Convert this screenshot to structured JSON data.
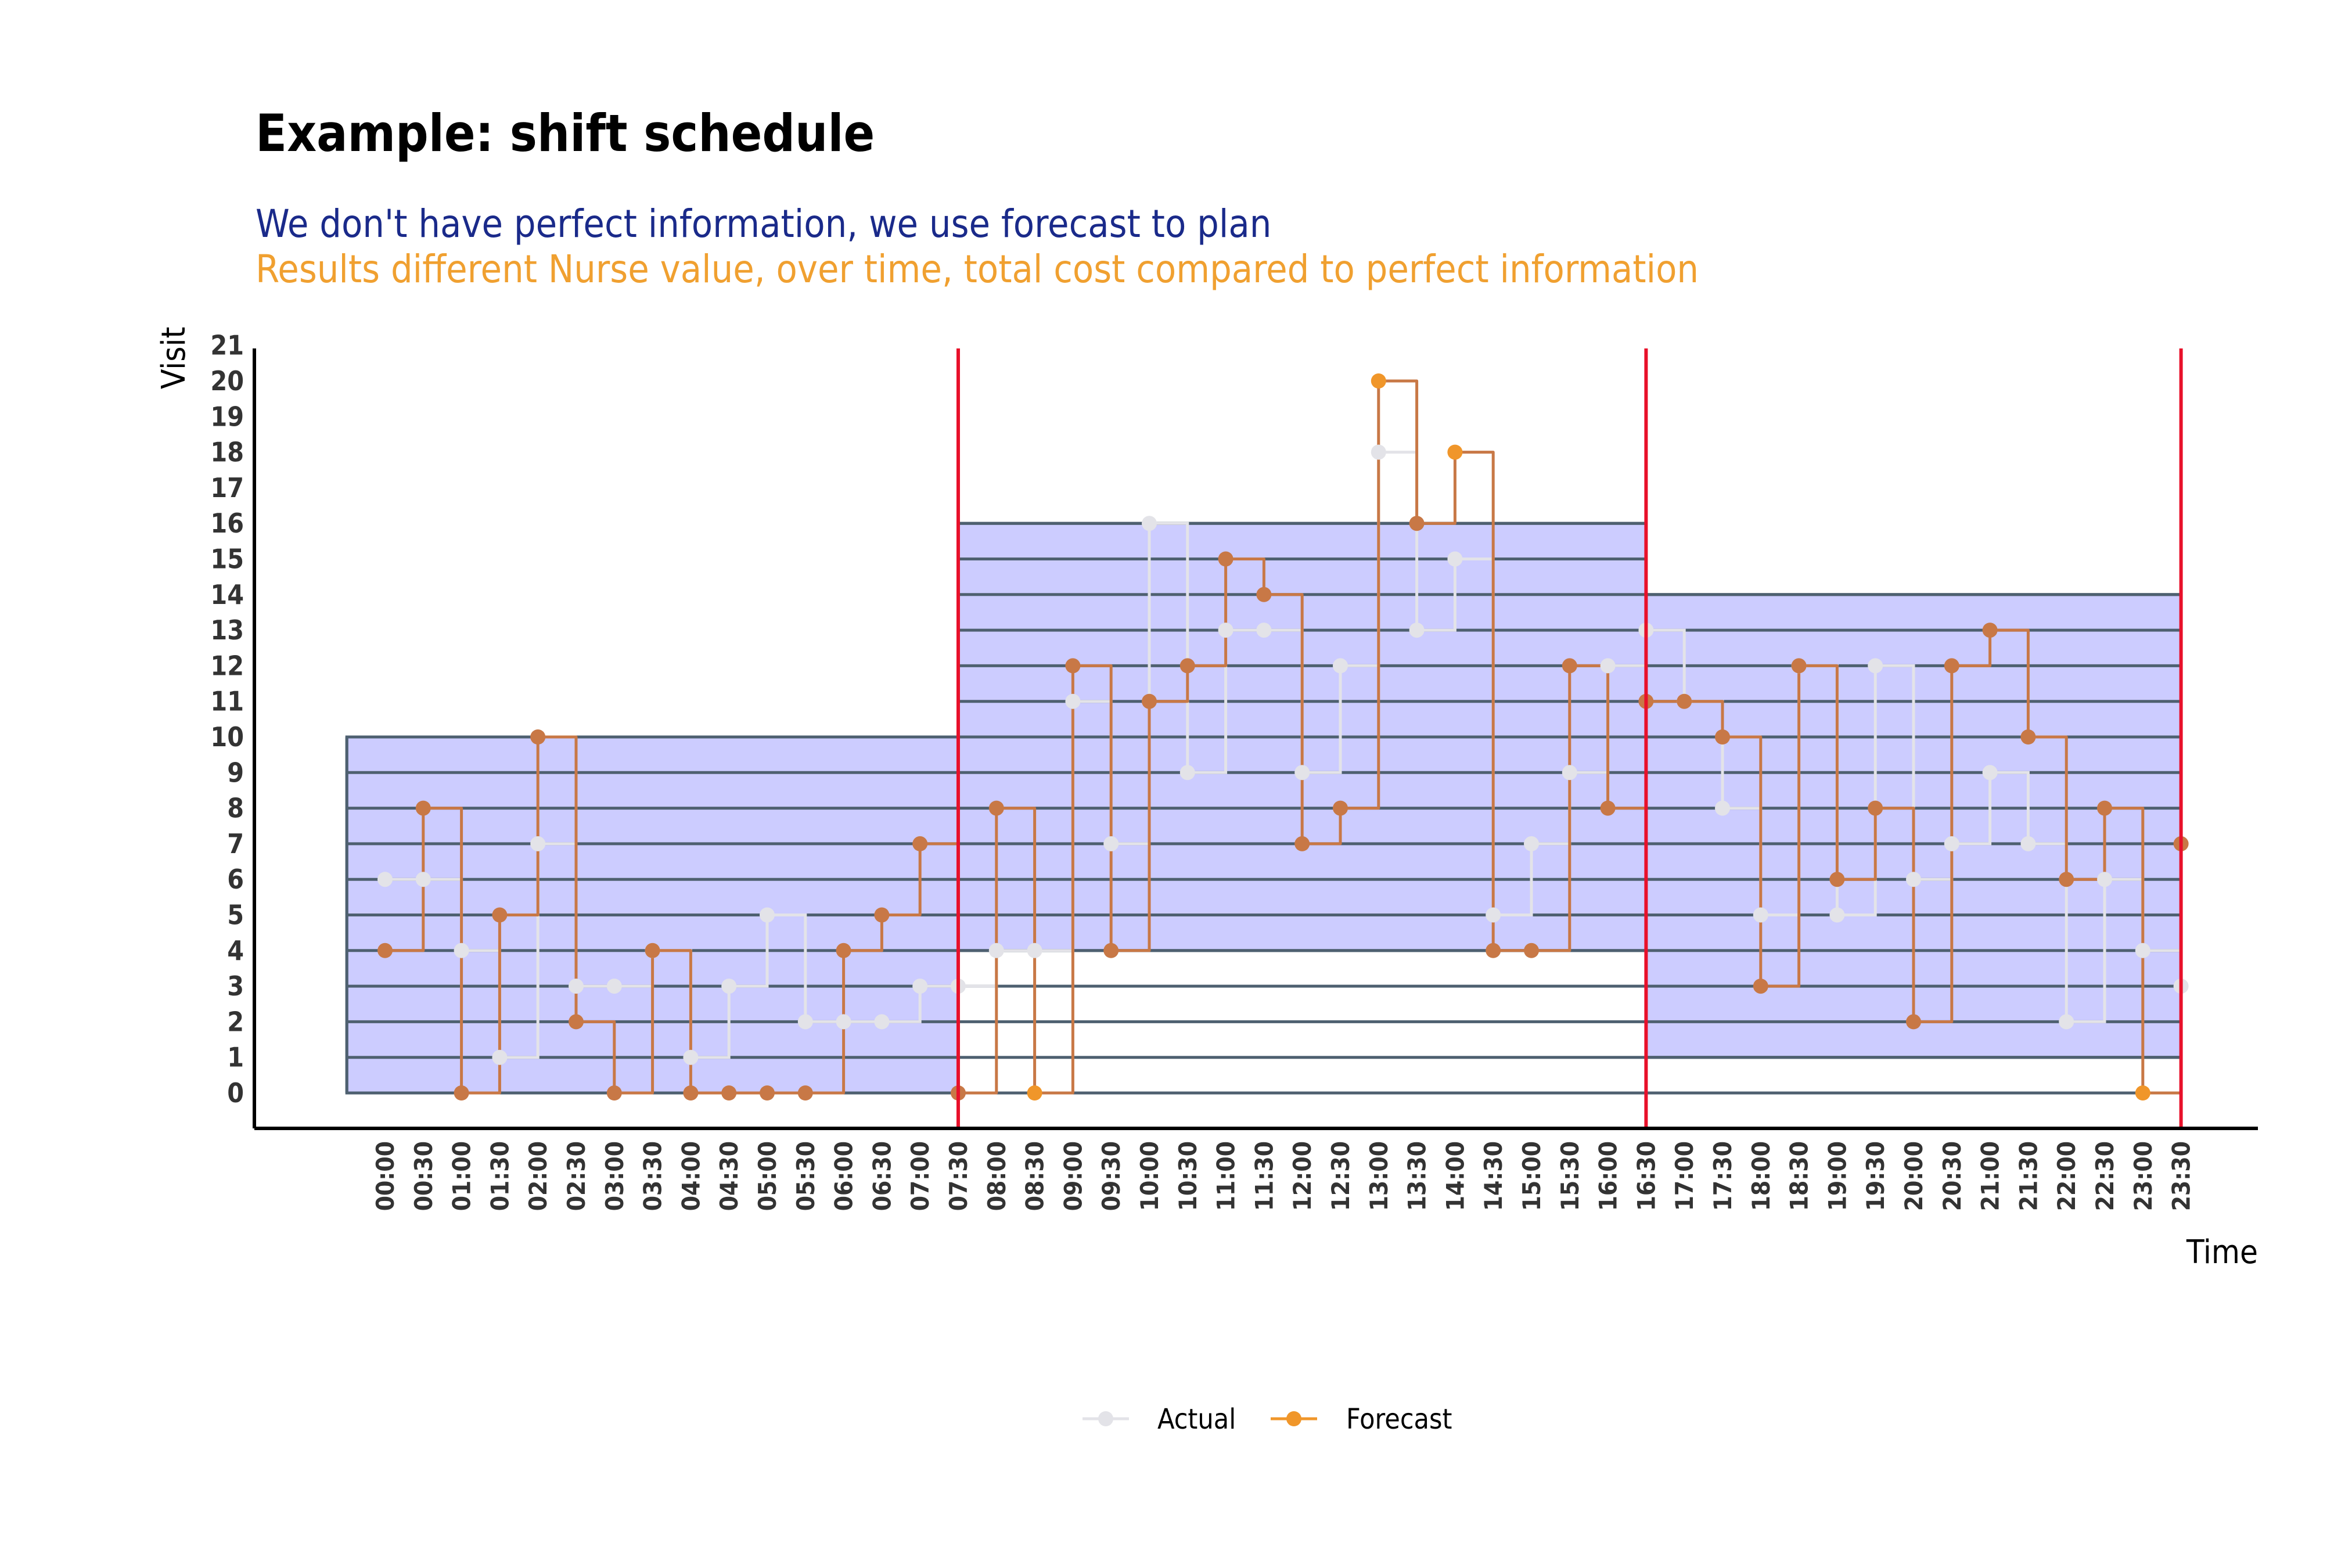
{
  "chart_data": {
    "type": "line",
    "title": "Example: shift schedule",
    "subtitle_1": "We don't have perfect information, we use forecast to plan",
    "subtitle_2": "Results different Nurse value, over time, total cost compared to perfect information",
    "xlabel": "Time",
    "ylabel": "Visit",
    "ylim": [
      0,
      21
    ],
    "yticks": [
      "0",
      "1",
      "2",
      "3",
      "4",
      "5",
      "6",
      "7",
      "8",
      "9",
      "10",
      "11",
      "12",
      "13",
      "14",
      "15",
      "16",
      "17",
      "18",
      "19",
      "20",
      "21"
    ],
    "x": [
      "00:00",
      "00:30",
      "01:00",
      "01:30",
      "02:00",
      "02:30",
      "03:00",
      "03:30",
      "04:00",
      "04:30",
      "05:00",
      "05:30",
      "06:00",
      "06:30",
      "07:00",
      "07:30",
      "08:00",
      "08:30",
      "09:00",
      "09:30",
      "10:00",
      "10:30",
      "11:00",
      "11:30",
      "12:00",
      "12:30",
      "13:00",
      "13:30",
      "14:00",
      "14:30",
      "15:00",
      "15:30",
      "16:00",
      "16:30",
      "17:00",
      "17:30",
      "18:00",
      "18:30",
      "19:00",
      "19:30",
      "20:00",
      "20:30",
      "21:00",
      "21:30",
      "22:00",
      "22:30",
      "23:00",
      "23:30"
    ],
    "series": [
      {
        "name": "Actual",
        "color": "#e3e3e8",
        "values": [
          6,
          6,
          4,
          1,
          7,
          3,
          3,
          4,
          1,
          3,
          5,
          2,
          2,
          2,
          3,
          3,
          4,
          4,
          11,
          7,
          16,
          9,
          13,
          13,
          9,
          12,
          18,
          13,
          15,
          5,
          7,
          9,
          12,
          13,
          11,
          8,
          5,
          12,
          5,
          12,
          6,
          7,
          9,
          7,
          2,
          6,
          4,
          3
        ]
      },
      {
        "name": "Forecast",
        "color": "#f0962a",
        "values": [
          4,
          8,
          0,
          5,
          10,
          2,
          0,
          4,
          0,
          0,
          0,
          0,
          4,
          5,
          7,
          0,
          8,
          0,
          12,
          4,
          11,
          12,
          15,
          14,
          7,
          8,
          20,
          16,
          18,
          4,
          4,
          12,
          8,
          11,
          11,
          10,
          3,
          12,
          6,
          8,
          2,
          12,
          13,
          10,
          6,
          8,
          0,
          7
        ]
      }
    ],
    "shifts": [
      {
        "start": "00:00",
        "end": "07:30",
        "from": 0,
        "to": 10
      },
      {
        "start": "07:30",
        "end": "16:30",
        "from": 4,
        "to": 16
      },
      {
        "start": "16:30",
        "end": "23:30",
        "from": 1,
        "to": 14
      }
    ],
    "shift_markers": [
      "07:30",
      "16:30",
      "23:30"
    ],
    "colors": {
      "shift_fill": "#ccccff",
      "shift_line": "#4e6070",
      "marker": "#e8102a",
      "connector": "#c87846"
    },
    "grid": false,
    "legend_position": "bottom"
  }
}
